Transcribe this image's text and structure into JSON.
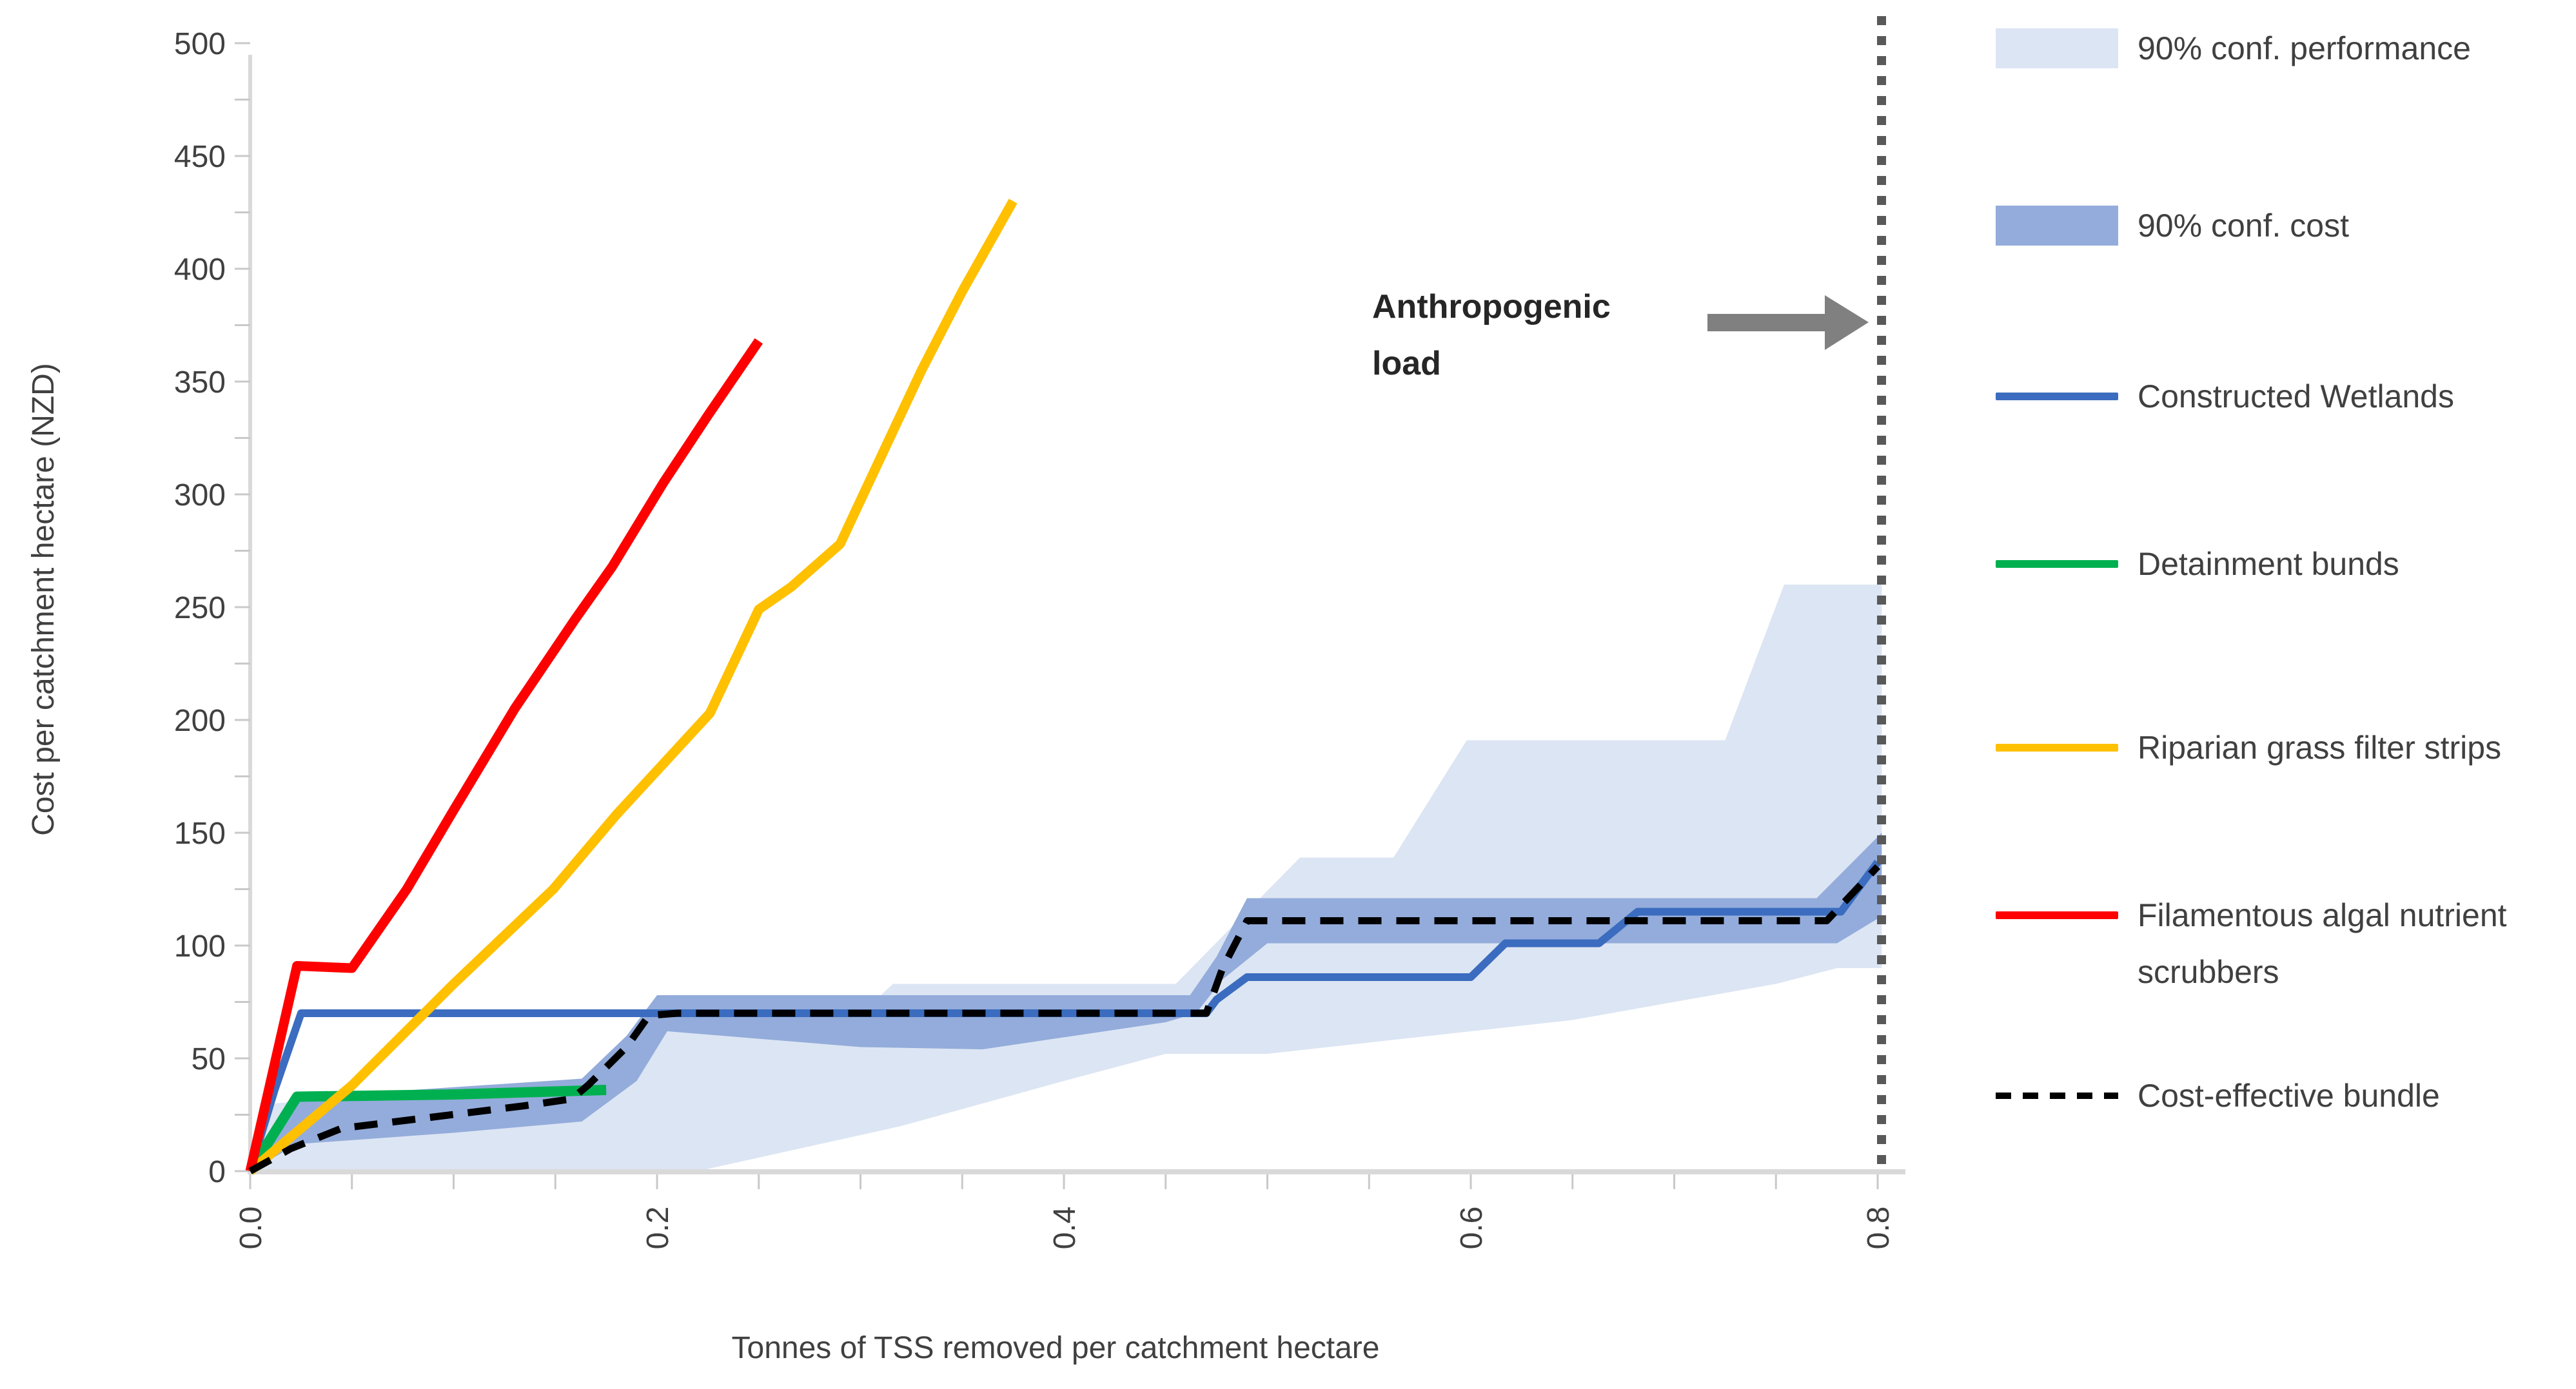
{
  "chart_data": {
    "type": "line",
    "title": "",
    "xlabel": "Tonnes of TSS removed per catchment hectare",
    "ylabel": "Cost per catchment hectare (NZD)",
    "xlim": [
      0,
      0.815
    ],
    "ylim": [
      0,
      500
    ],
    "x_ticks": [
      0.0,
      0.2,
      0.4,
      0.6,
      0.8
    ],
    "x_tick_labels": [
      "0.0",
      "0.2",
      "0.4",
      "0.6",
      "0.8"
    ],
    "x_minor_step": 0.05,
    "y_ticks": [
      0,
      50,
      100,
      150,
      200,
      250,
      300,
      350,
      400,
      450,
      500
    ],
    "y_tick_labels": [
      "0",
      "50",
      "100",
      "150",
      "200",
      "250",
      "300",
      "350",
      "400",
      "450",
      "500"
    ],
    "y_minor_step": 25,
    "grid": "off",
    "legend_position": "right",
    "annotation": {
      "line1": "Anthropogenic",
      "line2": "load",
      "text": "Anthropogenic load",
      "x": 0.8
    },
    "reference_line": {
      "x": 0.8,
      "style": "dotted",
      "color": "#595959"
    },
    "bands": [
      {
        "name": "90% conf. performance",
        "color": "#DCE5F3",
        "upper": [
          [
            0,
            0
          ],
          [
            0.012,
            30
          ],
          [
            0.05,
            33
          ],
          [
            0.17,
            36
          ],
          [
            0.19,
            55
          ],
          [
            0.2,
            78
          ],
          [
            0.31,
            78
          ],
          [
            0.316,
            83
          ],
          [
            0.455,
            83
          ],
          [
            0.516,
            139
          ],
          [
            0.562,
            139
          ],
          [
            0.598,
            191
          ],
          [
            0.725,
            191
          ],
          [
            0.754,
            260
          ],
          [
            0.802,
            260
          ]
        ],
        "lower": [
          [
            0,
            0
          ],
          [
            0.22,
            0
          ],
          [
            0.25,
            6
          ],
          [
            0.32,
            20
          ],
          [
            0.4,
            40
          ],
          [
            0.45,
            52
          ],
          [
            0.5,
            52
          ],
          [
            0.55,
            57
          ],
          [
            0.6,
            62
          ],
          [
            0.65,
            67
          ],
          [
            0.7,
            75
          ],
          [
            0.75,
            83
          ],
          [
            0.78,
            90
          ],
          [
            0.802,
            90
          ]
        ]
      },
      {
        "name": "90% conf. cost",
        "color": "#93ACDB",
        "upper": [
          [
            0,
            0
          ],
          [
            0.023,
            33
          ],
          [
            0.08,
            36
          ],
          [
            0.163,
            41
          ],
          [
            0.185,
            60
          ],
          [
            0.2,
            78
          ],
          [
            0.462,
            78
          ],
          [
            0.475,
            95
          ],
          [
            0.49,
            121
          ],
          [
            0.77,
            121
          ],
          [
            0.802,
            150
          ]
        ],
        "lower": [
          [
            0,
            0
          ],
          [
            0.023,
            12
          ],
          [
            0.1,
            17
          ],
          [
            0.163,
            22
          ],
          [
            0.19,
            40
          ],
          [
            0.205,
            62
          ],
          [
            0.3,
            55
          ],
          [
            0.36,
            54
          ],
          [
            0.45,
            66
          ],
          [
            0.465,
            70
          ],
          [
            0.478,
            85
          ],
          [
            0.5,
            101
          ],
          [
            0.78,
            101
          ],
          [
            0.802,
            113
          ]
        ]
      }
    ],
    "series": [
      {
        "name": "Constructed Wetlands",
        "color": "#3B6CBF",
        "style": "solid",
        "width": 12,
        "points": [
          [
            0,
            0
          ],
          [
            0.012,
            36
          ],
          [
            0.025,
            70
          ],
          [
            0.47,
            70
          ],
          [
            0.475,
            76
          ],
          [
            0.49,
            86
          ],
          [
            0.6,
            86
          ],
          [
            0.617,
            101
          ],
          [
            0.663,
            101
          ],
          [
            0.682,
            115
          ],
          [
            0.782,
            115
          ],
          [
            0.8,
            137
          ]
        ]
      },
      {
        "name": "Detainment bunds",
        "color": "#00B050",
        "style": "solid",
        "width": 16,
        "points": [
          [
            0,
            0
          ],
          [
            0.023,
            33
          ],
          [
            0.1,
            34
          ],
          [
            0.175,
            36
          ]
        ]
      },
      {
        "name": "Riparian grass filter strips",
        "color": "#FFC000",
        "style": "solid",
        "width": 15,
        "points": [
          [
            0,
            0
          ],
          [
            0.05,
            38
          ],
          [
            0.1,
            83
          ],
          [
            0.149,
            125
          ],
          [
            0.18,
            158
          ],
          [
            0.226,
            203
          ],
          [
            0.25,
            249
          ],
          [
            0.266,
            259
          ],
          [
            0.29,
            278
          ],
          [
            0.304,
            305
          ],
          [
            0.33,
            355
          ],
          [
            0.35,
            390
          ],
          [
            0.375,
            430
          ]
        ]
      },
      {
        "name": "Filamentous algal nutrient scrubbers",
        "color": "#FF0000",
        "style": "solid",
        "width": 15,
        "points": [
          [
            0,
            0
          ],
          [
            0.023,
            91
          ],
          [
            0.05,
            90
          ],
          [
            0.077,
            125
          ],
          [
            0.1,
            160
          ],
          [
            0.13,
            205
          ],
          [
            0.16,
            245
          ],
          [
            0.178,
            268
          ],
          [
            0.203,
            305
          ],
          [
            0.225,
            335
          ],
          [
            0.25,
            368
          ]
        ]
      },
      {
        "name": "Cost-effective bundle",
        "color": "#000000",
        "style": "dashed",
        "width": 11,
        "points": [
          [
            0,
            0
          ],
          [
            0.02,
            10
          ],
          [
            0.045,
            19
          ],
          [
            0.09,
            24
          ],
          [
            0.135,
            29
          ],
          [
            0.158,
            32
          ],
          [
            0.166,
            38
          ],
          [
            0.185,
            55
          ],
          [
            0.196,
            69
          ],
          [
            0.21,
            70
          ],
          [
            0.47,
            70
          ],
          [
            0.478,
            90
          ],
          [
            0.49,
            111
          ],
          [
            0.775,
            111
          ],
          [
            0.8,
            135
          ]
        ]
      }
    ]
  },
  "legend": {
    "items": [
      {
        "label": "90% conf. performance",
        "swatch": "area",
        "color": "#DCE5F3"
      },
      {
        "label": "90% conf. cost",
        "swatch": "area",
        "color": "#93ACDB"
      },
      {
        "label": "Constructed Wetlands",
        "swatch": "line",
        "color": "#3B6CBF"
      },
      {
        "label": "Detainment bunds",
        "swatch": "line",
        "color": "#00B050"
      },
      {
        "label": "Riparian grass filter strips",
        "swatch": "line",
        "color": "#FFC000"
      },
      {
        "label": "Filamentous algal nutrient scrubbers",
        "swatch": "line",
        "color": "#FF0000"
      },
      {
        "label": "Cost-effective bundle",
        "swatch": "dashed",
        "color": "#000000"
      }
    ]
  },
  "colors": {
    "axis_line": "#D9D9D9",
    "tick": "#C9C9C9",
    "text": "#404040",
    "annotation_text": "#262626",
    "arrow": "#808080",
    "reference_line": "#595959"
  }
}
